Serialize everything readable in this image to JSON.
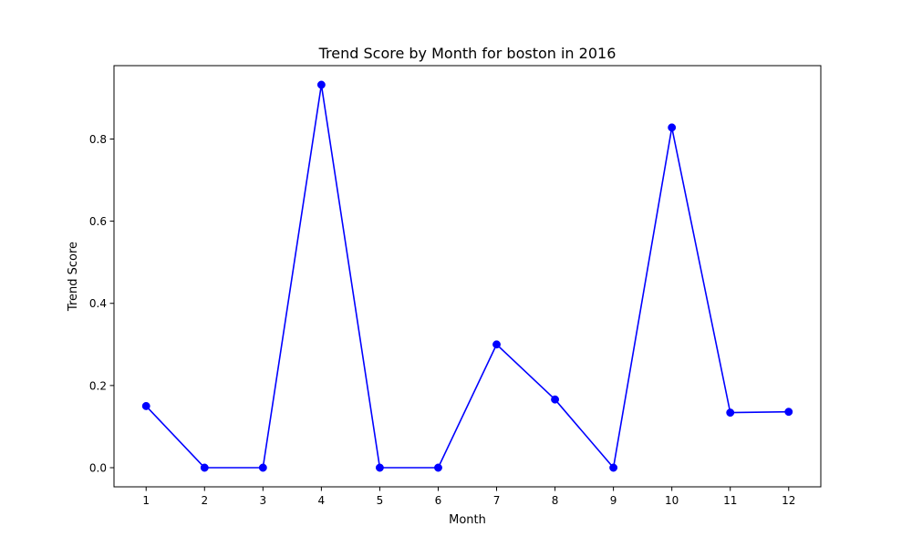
{
  "chart_data": {
    "type": "line",
    "title": "Trend Score by Month for boston in 2016",
    "xlabel": "Month",
    "ylabel": "Trend Score",
    "x": [
      1,
      2,
      3,
      4,
      5,
      6,
      7,
      8,
      9,
      10,
      11,
      12
    ],
    "series": [
      {
        "values": [
          0.15,
          0.0,
          0.0,
          0.932,
          0.0,
          0.0,
          0.3,
          0.166,
          0.0,
          0.828,
          0.134,
          0.136
        ],
        "color": "#0000ff",
        "marker": "circle"
      }
    ],
    "xticks": [
      "1",
      "2",
      "3",
      "4",
      "5",
      "6",
      "7",
      "8",
      "9",
      "10",
      "11",
      "12"
    ],
    "yticks": [
      0.0,
      0.2,
      0.4,
      0.6,
      0.8
    ],
    "ytick_labels": [
      "0.0",
      "0.2",
      "0.4",
      "0.6",
      "0.8"
    ],
    "xlim": [
      0.45,
      12.55
    ],
    "ylim": [
      -0.0466,
      0.9786
    ],
    "grid": false,
    "legend": "none"
  }
}
